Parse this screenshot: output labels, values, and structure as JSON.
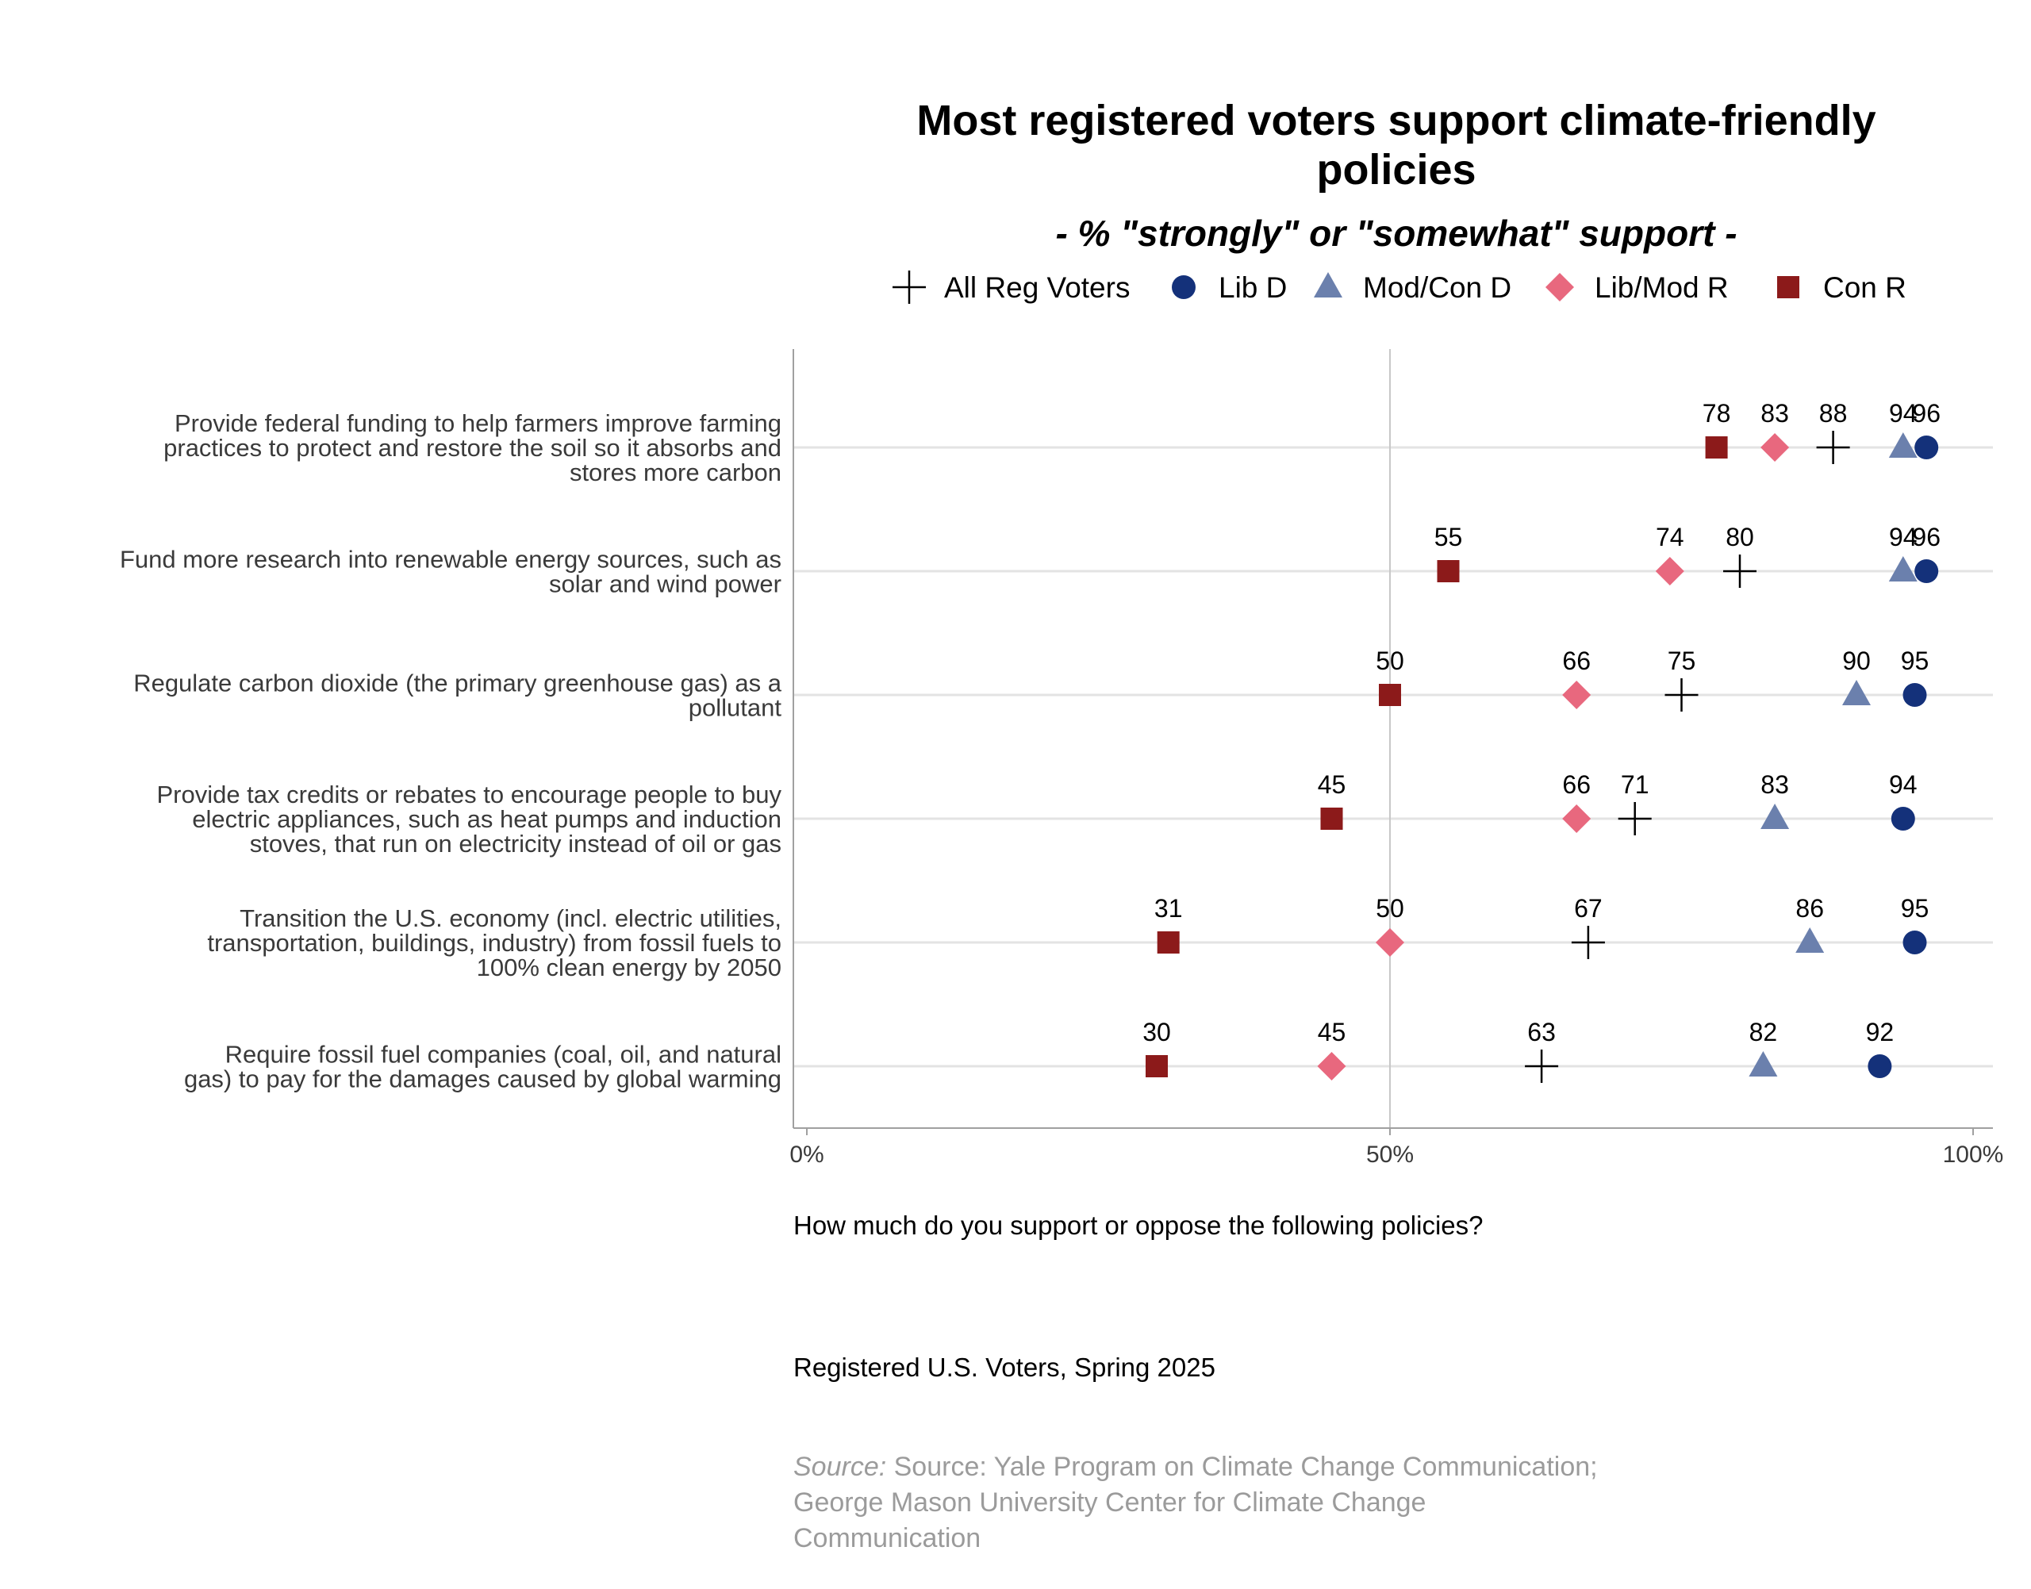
{
  "chart_data": {
    "type": "scatter",
    "title_lines": [
      "Most registered voters support climate-friendly",
      "policies"
    ],
    "subtitle": "- % \"strongly\" or \"somewhat\" support -",
    "x_ticks": [
      "0%",
      "50%",
      "100%"
    ],
    "xlim": [
      0,
      100
    ],
    "grid": true,
    "legend_position": "top",
    "categories": [
      {
        "lines": [
          "Provide federal funding to help farmers improve farming",
          "practices to protect and restore the soil so it absorbs and",
          "stores more carbon"
        ]
      },
      {
        "lines": [
          "Fund more research into renewable energy sources, such as",
          "solar and wind power"
        ]
      },
      {
        "lines": [
          "Regulate carbon dioxide (the primary greenhouse gas) as a",
          "pollutant"
        ]
      },
      {
        "lines": [
          "Provide tax credits or rebates to encourage people to buy",
          "electric appliances, such as heat pumps and induction",
          "stoves, that run on electricity instead of oil or gas"
        ]
      },
      {
        "lines": [
          "Transition the U.S. economy (incl. electric utilities,",
          "transportation, buildings, industry) from fossil fuels to",
          "100% clean energy by 2050"
        ]
      },
      {
        "lines": [
          "Require fossil fuel companies (coal, oil, and natural",
          "gas) to pay for the damages caused by global warming"
        ]
      }
    ],
    "series": [
      {
        "name": "All Reg Voters",
        "marker": "plus",
        "color": "#000000",
        "values": [
          88,
          80,
          75,
          71,
          67,
          63
        ]
      },
      {
        "name": "Lib D",
        "marker": "circle",
        "color": "#14317a",
        "values": [
          96,
          96,
          95,
          94,
          95,
          92
        ]
      },
      {
        "name": "Mod/Con D",
        "marker": "triangle",
        "color": "#6b80ad",
        "values": [
          94,
          94,
          90,
          83,
          86,
          82
        ]
      },
      {
        "name": "Lib/Mod R",
        "marker": "diamond",
        "color": "#e8687e",
        "values": [
          83,
          74,
          66,
          66,
          50,
          45
        ]
      },
      {
        "name": "Con R",
        "marker": "square",
        "color": "#8c1a1a",
        "values": [
          78,
          55,
          50,
          45,
          31,
          30
        ]
      }
    ],
    "question": "How much do you support or oppose the following policies?",
    "sample": "Registered U.S. Voters, Spring 2025",
    "source_prefix": "Source:",
    "source_lines": [
      "Source: Yale Program on Climate Change Communication;",
      "George Mason University Center for Climate Change",
      "Communication"
    ]
  }
}
